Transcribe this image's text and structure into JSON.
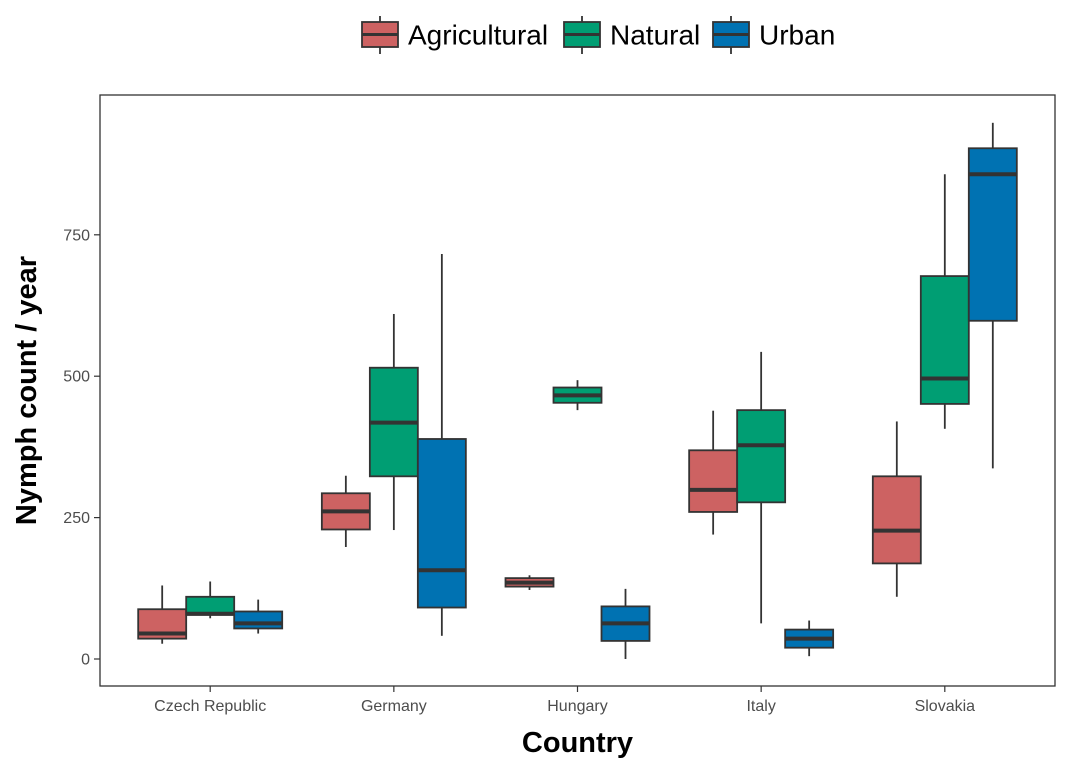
{
  "chart_data": {
    "type": "boxplot",
    "xlabel": "Country",
    "ylabel": "Nymph count / year",
    "ylim": [
      -45,
      960
    ],
    "yticks": [
      0,
      250,
      500,
      750
    ],
    "grid": false,
    "legend_position": "top",
    "categories": [
      "Czech Republic",
      "Germany",
      "Hungary",
      "Italy",
      "Slovakia"
    ],
    "series": [
      {
        "name": "Agricultural",
        "color": "#CD6262",
        "boxes": [
          {
            "min": 27,
            "q1": 36,
            "median": 45,
            "q3": 88,
            "max": 130
          },
          {
            "min": 198,
            "q1": 229,
            "median": 261,
            "q3": 293,
            "max": 324
          },
          {
            "min": 122,
            "q1": 128,
            "median": 135,
            "q3": 143,
            "max": 148
          },
          {
            "min": 220,
            "q1": 260,
            "median": 299,
            "q3": 369,
            "max": 439
          },
          {
            "min": 110,
            "q1": 169,
            "median": 227,
            "q3": 323,
            "max": 420
          }
        ]
      },
      {
        "name": "Natural",
        "color": "#009E73",
        "boxes": [
          {
            "min": 72,
            "q1": 78,
            "median": 80,
            "q3": 110,
            "max": 137
          },
          {
            "min": 228,
            "q1": 323,
            "median": 418,
            "q3": 515,
            "max": 610
          },
          {
            "min": 440,
            "q1": 453,
            "median": 466,
            "q3": 480,
            "max": 493
          },
          {
            "min": 63,
            "q1": 277,
            "median": 378,
            "q3": 440,
            "max": 543
          },
          {
            "min": 407,
            "q1": 451,
            "median": 496,
            "q3": 677,
            "max": 857
          }
        ]
      },
      {
        "name": "Urban",
        "color": "#0072B2",
        "boxes": [
          {
            "min": 45,
            "q1": 54,
            "median": 63,
            "q3": 84,
            "max": 105
          },
          {
            "min": 41,
            "q1": 91,
            "median": 157,
            "q3": 389,
            "max": 716
          },
          {
            "min": 0,
            "q1": 32,
            "median": 63,
            "q3": 93,
            "max": 124
          },
          {
            "min": 5,
            "q1": 20,
            "median": 36,
            "q3": 52,
            "max": 68
          },
          {
            "min": 337,
            "q1": 598,
            "median": 857,
            "q3": 903,
            "max": 948
          }
        ]
      }
    ]
  }
}
